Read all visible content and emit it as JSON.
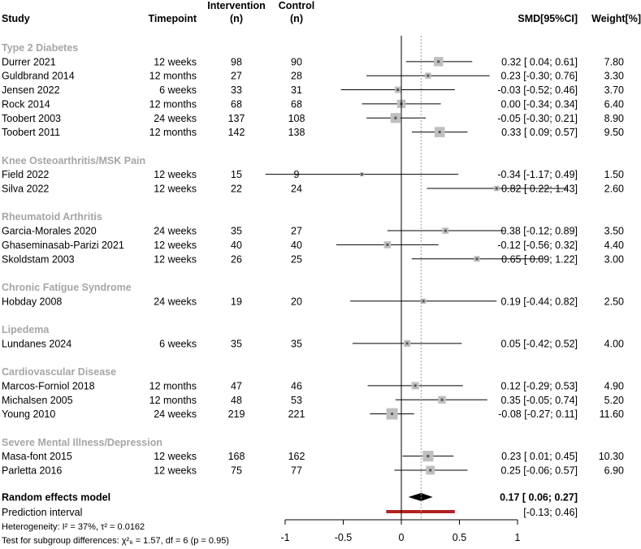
{
  "chart_data": {
    "type": "forest",
    "columns": {
      "study": "Study",
      "timepoint": "Timepoint",
      "intervention_l1": "Intervention",
      "intervention_l2": "(n)",
      "control_l1": "Control",
      "control_l2": "(n)",
      "smd": "SMD[95%CI]",
      "weight": "Weight[%]"
    },
    "groups": [
      {
        "name": "Type 2 Diabetes",
        "studies": [
          {
            "study": "Durrer 2021",
            "timepoint": "12 weeks",
            "n_int": "98",
            "n_ctrl": "90",
            "smd": 0.32,
            "lo": 0.04,
            "hi": 0.61,
            "ci_text": "0.32 [ 0.04; 0.61]",
            "weight": 7.8,
            "weight_text": "7.80"
          },
          {
            "study": "Guldbrand 2014",
            "timepoint": "12 months",
            "n_int": "27",
            "n_ctrl": "28",
            "smd": 0.23,
            "lo": -0.3,
            "hi": 0.76,
            "ci_text": "0.23 [-0.30; 0.76]",
            "weight": 3.3,
            "weight_text": "3.30"
          },
          {
            "study": "Jensen 2022",
            "timepoint": "6 weeks",
            "n_int": "33",
            "n_ctrl": "31",
            "smd": -0.03,
            "lo": -0.52,
            "hi": 0.46,
            "ci_text": "-0.03 [-0.52; 0.46]",
            "weight": 3.7,
            "weight_text": "3.70"
          },
          {
            "study": "Rock 2014",
            "timepoint": "12 months",
            "n_int": "68",
            "n_ctrl": "68",
            "smd": 0.0,
            "lo": -0.34,
            "hi": 0.34,
            "ci_text": "0.00 [-0.34; 0.34]",
            "weight": 6.4,
            "weight_text": "6.40"
          },
          {
            "study": "Toobert 2003",
            "timepoint": "24 weeks",
            "n_int": "137",
            "n_ctrl": "108",
            "smd": -0.05,
            "lo": -0.3,
            "hi": 0.21,
            "ci_text": "-0.05 [-0.30; 0.21]",
            "weight": 8.9,
            "weight_text": "8.90"
          },
          {
            "study": "Toobert 2011",
            "timepoint": "12 months",
            "n_int": "142",
            "n_ctrl": "138",
            "smd": 0.33,
            "lo": 0.09,
            "hi": 0.57,
            "ci_text": "0.33 [ 0.09; 0.57]",
            "weight": 9.5,
            "weight_text": "9.50"
          }
        ]
      },
      {
        "name": "Knee Osteoarthritis/MSK Pain",
        "studies": [
          {
            "study": "Field 2022",
            "timepoint": "12 weeks",
            "n_int": "15",
            "n_ctrl": "9",
            "smd": -0.34,
            "lo": -1.17,
            "hi": 0.49,
            "ci_text": "-0.34 [-1.17; 0.49]",
            "weight": 1.5,
            "weight_text": "1.50"
          },
          {
            "study": "Silva 2022",
            "timepoint": "12 weeks",
            "n_int": "22",
            "n_ctrl": "24",
            "smd": 0.82,
            "lo": 0.22,
            "hi": 1.43,
            "ci_text": "0.82 [ 0.22; 1.43]",
            "weight": 2.6,
            "weight_text": "2.60"
          }
        ]
      },
      {
        "name": "Rheumatoid Arthritis",
        "studies": [
          {
            "study": "Garcia-Morales 2020",
            "timepoint": "24 weeks",
            "n_int": "35",
            "n_ctrl": "27",
            "smd": 0.38,
            "lo": -0.12,
            "hi": 0.89,
            "ci_text": "0.38 [-0.12; 0.89]",
            "weight": 3.5,
            "weight_text": "3.50"
          },
          {
            "study": "Ghaseminasab-Parizi 2021",
            "timepoint": "12 weeks",
            "n_int": "40",
            "n_ctrl": "40",
            "smd": -0.12,
            "lo": -0.56,
            "hi": 0.32,
            "ci_text": "-0.12 [-0.56; 0.32]",
            "weight": 4.4,
            "weight_text": "4.40"
          },
          {
            "study": "Skoldstam 2003",
            "timepoint": "12 weeks",
            "n_int": "26",
            "n_ctrl": "25",
            "smd": 0.65,
            "lo": 0.09,
            "hi": 1.22,
            "ci_text": "0.65 [ 0.09; 1.22]",
            "weight": 3.0,
            "weight_text": "3.00"
          }
        ]
      },
      {
        "name": "Chronic Fatigue Syndrome",
        "studies": [
          {
            "study": "Hobday 2008",
            "timepoint": "24 weeks",
            "n_int": "19",
            "n_ctrl": "20",
            "smd": 0.19,
            "lo": -0.44,
            "hi": 0.82,
            "ci_text": "0.19 [-0.44; 0.82]",
            "weight": 2.5,
            "weight_text": "2.50"
          }
        ]
      },
      {
        "name": "Lipedema",
        "studies": [
          {
            "study": "Lundanes 2024",
            "timepoint": "6 weeks",
            "n_int": "35",
            "n_ctrl": "35",
            "smd": 0.05,
            "lo": -0.42,
            "hi": 0.52,
            "ci_text": "0.05 [-0.42; 0.52]",
            "weight": 4.0,
            "weight_text": "4.00"
          }
        ]
      },
      {
        "name": "Cardiovascular Disease",
        "studies": [
          {
            "study": "Marcos-Forniol 2018",
            "timepoint": "12 months",
            "n_int": "47",
            "n_ctrl": "46",
            "smd": 0.12,
            "lo": -0.29,
            "hi": 0.53,
            "ci_text": "0.12 [-0.29; 0.53]",
            "weight": 4.9,
            "weight_text": "4.90"
          },
          {
            "study": "Michalsen 2005",
            "timepoint": "12 months",
            "n_int": "48",
            "n_ctrl": "53",
            "smd": 0.35,
            "lo": -0.05,
            "hi": 0.74,
            "ci_text": "0.35 [-0.05; 0.74]",
            "weight": 5.2,
            "weight_text": "5.20"
          },
          {
            "study": "Young 2010",
            "timepoint": "24 weeks",
            "n_int": "219",
            "n_ctrl": "221",
            "smd": -0.08,
            "lo": -0.27,
            "hi": 0.11,
            "ci_text": "-0.08 [-0.27; 0.11]",
            "weight": 11.6,
            "weight_text": "11.60"
          }
        ]
      },
      {
        "name": "Severe Mental Illness/Depression",
        "studies": [
          {
            "study": "Masa-font 2015",
            "timepoint": "12 weeks",
            "n_int": "168",
            "n_ctrl": "162",
            "smd": 0.23,
            "lo": 0.01,
            "hi": 0.45,
            "ci_text": "0.23 [ 0.01; 0.45]",
            "weight": 10.3,
            "weight_text": "10.30"
          },
          {
            "study": "Parletta 2016",
            "timepoint": "12 weeks",
            "n_int": "75",
            "n_ctrl": "77",
            "smd": 0.25,
            "lo": -0.06,
            "hi": 0.57,
            "ci_text": "0.25 [-0.06; 0.57]",
            "weight": 6.9,
            "weight_text": "6.90"
          }
        ]
      }
    ],
    "overall": {
      "label": "Random effects model",
      "smd": 0.17,
      "lo": 0.06,
      "hi": 0.27,
      "ci_text": "0.17 [ 0.06; 0.27]"
    },
    "prediction": {
      "label": "Prediction interval",
      "lo": -0.13,
      "hi": 0.46,
      "ci_text": "[-0.13; 0.46]"
    },
    "heterogeneity_text": "Heterogeneity: I² = 37%, τ² = 0.0162",
    "subgroup_text": "Test for subgroup differences: χ²₆ = 1.57, df = 6 (p = 0.95)",
    "x_axis": {
      "range": [
        -1,
        1
      ],
      "ticks": [
        -1,
        -0.5,
        0,
        0.5,
        1
      ],
      "tick_labels": [
        "-1",
        "-0.5",
        "0",
        "0.5",
        "1"
      ]
    },
    "null_line": 0,
    "colors": {
      "square": "#bfbfbf",
      "line": "#000000",
      "text": "#000000",
      "group_label": "#a6a6a6",
      "prediction": "#b22222",
      "diamond": "#000000"
    }
  }
}
